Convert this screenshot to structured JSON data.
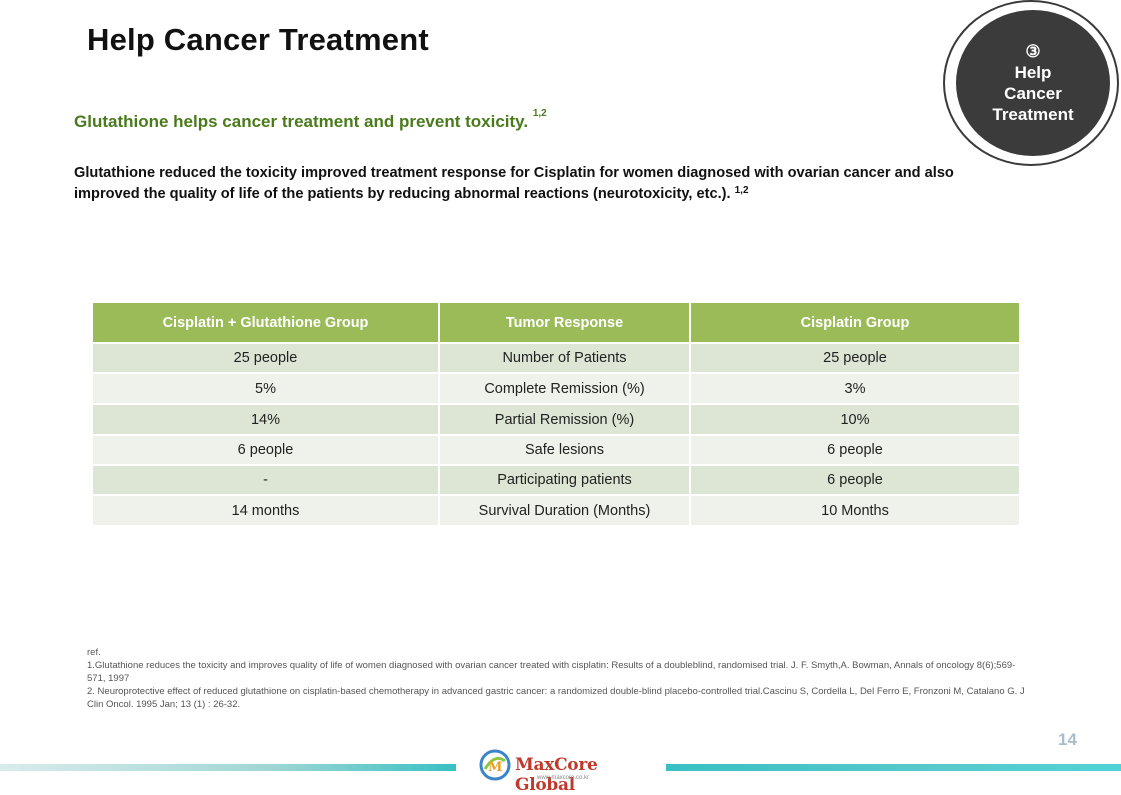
{
  "title": "Help Cancer Treatment",
  "badge": {
    "number": "③",
    "line1": "Help",
    "line2": "Cancer",
    "line3": "Treatment"
  },
  "subtitle": {
    "text": "Glutathione helps cancer treatment and prevent toxicity.",
    "sup": "1,2"
  },
  "paragraph": {
    "text": "Glutathione reduced the toxicity improved treatment response for Cisplatin for women diagnosed with ovarian cancer and also improved the quality of life of the patients by reducing abnormal reactions (neurotoxicity, etc.).",
    "sup": "1,2"
  },
  "table": {
    "headers": [
      "Cisplatin + Glutathione Group",
      "Tumor Response",
      "Cisplatin Group"
    ],
    "rows": [
      [
        "25 people",
        "Number of Patients",
        "25 people"
      ],
      [
        "5%",
        "Complete Remission (%)",
        "3%"
      ],
      [
        "14%",
        "Partial Remission (%)",
        "10%"
      ],
      [
        "6 people",
        "Safe lesions",
        "6 people"
      ],
      [
        "-",
        "Participating patients",
        "6 people"
      ],
      [
        "14 months",
        "Survival Duration (Months)",
        "10 Months"
      ]
    ]
  },
  "refs": {
    "label": "ref.",
    "ref1": "1.Glutathione reduces the toxicity and improves quality of life of women diagnosed with ovarian cancer treated with cisplatin: Results of a doubleblind, randomised trial. J. F. Smyth,A. Bowman, Annals of oncology 8(6);569-571, 1997",
    "ref2": "2. Neuroprotective effect of reduced glutathione on cisplatin-based chemotherapy in advanced gastric cancer: a randomized double-blind placebo-controlled trial.Cascinu S, Cordella L, Del Ferro E, Fronzoni M, Catalano G. J Clin Oncol. 1995 Jan; 13 (1) : 26-32."
  },
  "page_number": "14",
  "logo": {
    "name": "MaxCore Global",
    "url": "www.maxcore.co.kr"
  },
  "colors": {
    "header_green": "#9bbb59",
    "subtitle_green": "#4a7a1c",
    "badge_dark": "#3b3b3b",
    "accent_teal": "#39c0c4"
  }
}
